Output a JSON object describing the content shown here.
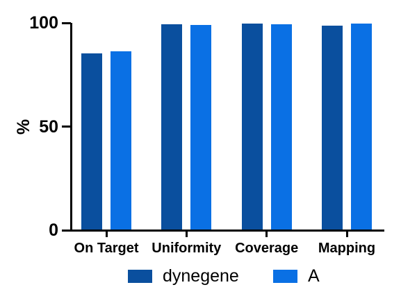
{
  "colors": {
    "background": "#ffffff",
    "axis": "#000000",
    "text": "#000000",
    "series1": "#0A4F9E",
    "series2": "#0A70E4"
  },
  "chart_data": {
    "type": "bar",
    "title": "",
    "categories": [
      "On Target",
      "Uniformity",
      "Coverage",
      "Mapping"
    ],
    "series": [
      {
        "name": "dynegene",
        "color": "#0A4F9E",
        "values": [
          85.3,
          99.3,
          99.7,
          98.7
        ]
      },
      {
        "name": "A",
        "color": "#0A70E4",
        "values": [
          86.3,
          99.0,
          99.5,
          99.7
        ]
      }
    ],
    "xlabel": "",
    "ylabel": "%",
    "yticks": [
      0,
      50,
      100
    ],
    "ylim": [
      0,
      100
    ],
    "grid": false,
    "legend_position": "bottom"
  }
}
